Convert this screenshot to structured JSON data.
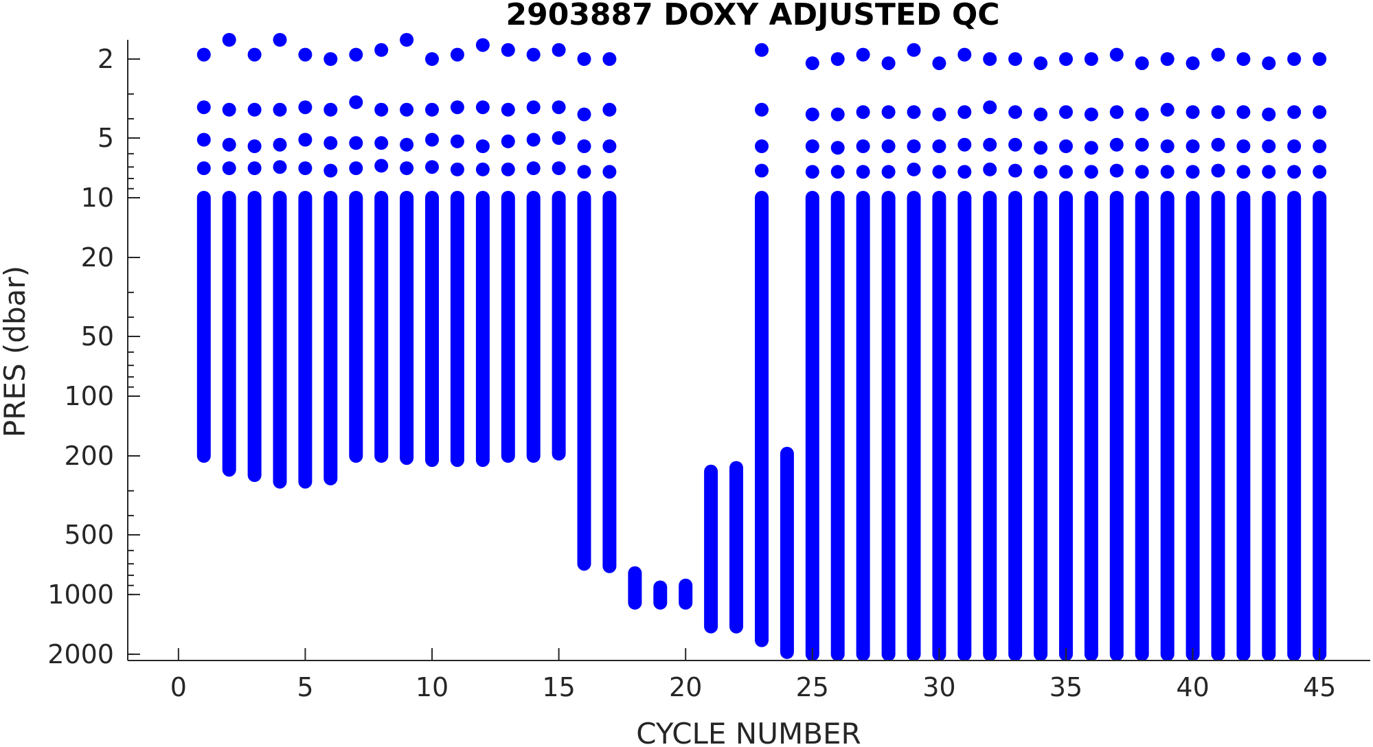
{
  "chart_data": {
    "type": "scatter",
    "title": "2903887  DOXY ADJUSTED QC",
    "xlabel": "CYCLE NUMBER",
    "ylabel": "PRES (dbar)",
    "xlim": [
      -2,
      47
    ],
    "ylim": [
      1.6,
      2150
    ],
    "y_scale": "log",
    "y_reversed": true,
    "xticks": [
      0,
      5,
      10,
      15,
      20,
      25,
      30,
      35,
      40,
      45
    ],
    "yticks": [
      2,
      5,
      10,
      20,
      50,
      100,
      200,
      500,
      1000,
      2000
    ],
    "grid": false,
    "legend": "none",
    "marker_color": "#0000ff",
    "series": [
      {
        "values": [
          {
            "x": 1,
            "surface": [
              1.9,
              3.5,
              5.1,
              7.1
            ],
            "top": 10,
            "bottom": 200
          },
          {
            "x": 2,
            "surface": [
              1.6,
              3.6,
              5.4,
              7.1
            ],
            "top": 10,
            "bottom": 235
          },
          {
            "x": 3,
            "surface": [
              1.9,
              3.6,
              5.5,
              7.1
            ],
            "top": 10,
            "bottom": 250
          },
          {
            "x": 4,
            "surface": [
              1.6,
              3.6,
              5.4,
              7.0
            ],
            "top": 10,
            "bottom": 270
          },
          {
            "x": 5,
            "surface": [
              1.9,
              3.5,
              5.1,
              7.1
            ],
            "top": 10,
            "bottom": 270
          },
          {
            "x": 6,
            "surface": [
              2.0,
              3.6,
              5.3,
              7.3
            ],
            "top": 10,
            "bottom": 260
          },
          {
            "x": 7,
            "surface": [
              1.9,
              3.3,
              5.3,
              7.1
            ],
            "top": 10,
            "bottom": 200
          },
          {
            "x": 8,
            "surface": [
              1.8,
              3.6,
              5.3,
              6.9
            ],
            "top": 10,
            "bottom": 200
          },
          {
            "x": 9,
            "surface": [
              1.6,
              3.6,
              5.4,
              7.1
            ],
            "top": 10,
            "bottom": 205
          },
          {
            "x": 10,
            "surface": [
              2.0,
              3.6,
              5.1,
              7.0
            ],
            "top": 10,
            "bottom": 210
          },
          {
            "x": 11,
            "surface": [
              1.9,
              3.5,
              5.2,
              7.2
            ],
            "top": 10,
            "bottom": 210
          },
          {
            "x": 12,
            "surface": [
              1.7,
              3.5,
              5.5,
              7.2
            ],
            "top": 10,
            "bottom": 210
          },
          {
            "x": 13,
            "surface": [
              1.8,
              3.6,
              5.2,
              7.2
            ],
            "top": 10,
            "bottom": 200
          },
          {
            "x": 14,
            "surface": [
              1.9,
              3.5,
              5.1,
              7.1
            ],
            "top": 10,
            "bottom": 200
          },
          {
            "x": 15,
            "surface": [
              1.8,
              3.5,
              5.0,
              7.1
            ],
            "top": 10,
            "bottom": 195
          },
          {
            "x": 16,
            "surface": [
              2.0,
              3.8,
              5.5,
              7.4
            ],
            "top": 10,
            "bottom": 700
          },
          {
            "x": 17,
            "surface": [
              2.0,
              3.6,
              5.5,
              7.4
            ],
            "top": 10,
            "bottom": 720
          },
          {
            "x": 18,
            "surface": [],
            "top": 780,
            "bottom": 1100
          },
          {
            "x": 19,
            "surface": [],
            "top": 920,
            "bottom": 1100
          },
          {
            "x": 20,
            "surface": [],
            "top": 900,
            "bottom": 1100
          },
          {
            "x": 21,
            "surface": [],
            "top": 240,
            "bottom": 1450
          },
          {
            "x": 22,
            "surface": [],
            "top": 230,
            "bottom": 1450
          },
          {
            "x": 23,
            "surface": [
              1.8,
              3.6,
              5.5,
              7.3
            ],
            "top": 10,
            "bottom": 1700
          },
          {
            "x": 24,
            "surface": [],
            "top": 195,
            "bottom": 1950
          },
          {
            "x": 25,
            "surface": [
              2.1,
              3.8,
              5.5,
              7.4
            ],
            "top": 10,
            "bottom": 2000
          },
          {
            "x": 26,
            "surface": [
              2.0,
              3.8,
              5.6,
              7.4
            ],
            "top": 10,
            "bottom": 2000
          },
          {
            "x": 27,
            "surface": [
              1.9,
              3.7,
              5.5,
              7.4
            ],
            "top": 10,
            "bottom": 2000
          },
          {
            "x": 28,
            "surface": [
              2.1,
              3.7,
              5.5,
              7.4
            ],
            "top": 10,
            "bottom": 2000
          },
          {
            "x": 29,
            "surface": [
              1.8,
              3.7,
              5.5,
              7.2
            ],
            "top": 10,
            "bottom": 2000
          },
          {
            "x": 30,
            "surface": [
              2.1,
              3.8,
              5.5,
              7.4
            ],
            "top": 10,
            "bottom": 2000
          },
          {
            "x": 31,
            "surface": [
              1.9,
              3.7,
              5.4,
              7.4
            ],
            "top": 10,
            "bottom": 2000
          },
          {
            "x": 32,
            "surface": [
              2.0,
              3.5,
              5.4,
              7.2
            ],
            "top": 10,
            "bottom": 2000
          },
          {
            "x": 33,
            "surface": [
              2.0,
              3.7,
              5.4,
              7.3
            ],
            "top": 10,
            "bottom": 2000
          },
          {
            "x": 34,
            "surface": [
              2.1,
              3.8,
              5.6,
              7.4
            ],
            "top": 10,
            "bottom": 2000
          },
          {
            "x": 35,
            "surface": [
              2.0,
              3.7,
              5.5,
              7.4
            ],
            "top": 10,
            "bottom": 2000
          },
          {
            "x": 36,
            "surface": [
              2.0,
              3.8,
              5.6,
              7.4
            ],
            "top": 10,
            "bottom": 2000
          },
          {
            "x": 37,
            "surface": [
              1.9,
              3.7,
              5.4,
              7.3
            ],
            "top": 10,
            "bottom": 2000
          },
          {
            "x": 38,
            "surface": [
              2.1,
              3.8,
              5.4,
              7.4
            ],
            "top": 10,
            "bottom": 2000
          },
          {
            "x": 39,
            "surface": [
              2.0,
              3.6,
              5.5,
              7.4
            ],
            "top": 10,
            "bottom": 2000
          },
          {
            "x": 40,
            "surface": [
              2.1,
              3.7,
              5.5,
              7.4
            ],
            "top": 10,
            "bottom": 2000
          },
          {
            "x": 41,
            "surface": [
              1.9,
              3.7,
              5.4,
              7.3
            ],
            "top": 10,
            "bottom": 2000
          },
          {
            "x": 42,
            "surface": [
              2.0,
              3.7,
              5.5,
              7.4
            ],
            "top": 10,
            "bottom": 2000
          },
          {
            "x": 43,
            "surface": [
              2.1,
              3.8,
              5.5,
              7.4
            ],
            "top": 10,
            "bottom": 2000
          },
          {
            "x": 44,
            "surface": [
              2.0,
              3.7,
              5.5,
              7.4
            ],
            "top": 10,
            "bottom": 2000
          },
          {
            "x": 45,
            "surface": [
              2.0,
              3.7,
              5.5,
              7.4
            ],
            "top": 10,
            "bottom": 2000
          }
        ]
      }
    ]
  }
}
